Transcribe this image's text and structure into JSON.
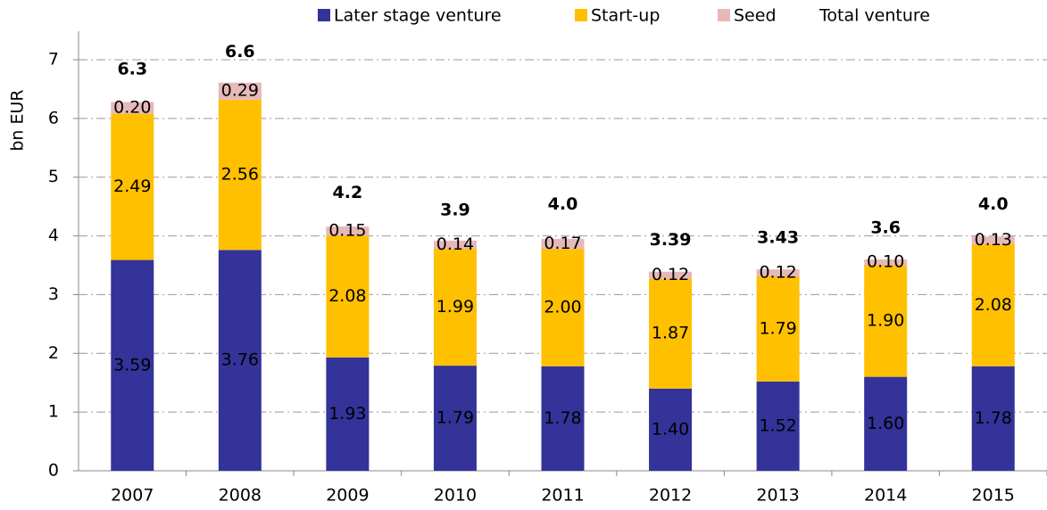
{
  "chart_data": {
    "type": "stacked_bar",
    "y_label": "bn EUR",
    "categories": [
      "2007",
      "2008",
      "2009",
      "2010",
      "2011",
      "2012",
      "2013",
      "2014",
      "2015"
    ],
    "series": [
      {
        "name": "Later stage venture",
        "color": "#333399",
        "label_color": "#ffffff",
        "values": [
          3.59,
          3.76,
          1.93,
          1.79,
          1.78,
          1.4,
          1.52,
          1.6,
          1.78
        ],
        "value_labels": [
          "3.59",
          "3.76",
          "1.93",
          "1.79",
          "1.78",
          "1.40",
          "1.52",
          "1.60",
          "1.78"
        ]
      },
      {
        "name": "Start-up",
        "color": "#ffc000",
        "label_color": "#000000",
        "values": [
          2.49,
          2.56,
          2.08,
          1.99,
          2.0,
          1.87,
          1.79,
          1.9,
          2.08
        ],
        "value_labels": [
          "2.49",
          "2.56",
          "2.08",
          "1.99",
          "2.00",
          "1.87",
          "1.79",
          "1.90",
          "2.08"
        ]
      },
      {
        "name": "Seed",
        "color": "#e6b9b8",
        "label_color": "#000000",
        "values": [
          0.2,
          0.29,
          0.15,
          0.14,
          0.17,
          0.12,
          0.12,
          0.1,
          0.13
        ],
        "value_labels": [
          "0.20",
          "0.29",
          "0.15",
          "0.14",
          "0.17",
          "0.12",
          "0.12",
          "0.10",
          "0.13"
        ]
      }
    ],
    "total": {
      "name": "Total venture",
      "color": "#008000",
      "values": [
        6.3,
        6.6,
        4.2,
        3.9,
        4.0,
        3.39,
        3.43,
        3.6,
        4.0
      ],
      "value_labels": [
        "6.3",
        "6.6",
        "4.2",
        "3.9",
        "4.0",
        "3.39",
        "3.43",
        "3.6",
        "4.0"
      ]
    },
    "ylim": [
      0,
      7
    ],
    "yticks": [
      0,
      1,
      2,
      3,
      4,
      5,
      6,
      7
    ],
    "grid": true
  }
}
